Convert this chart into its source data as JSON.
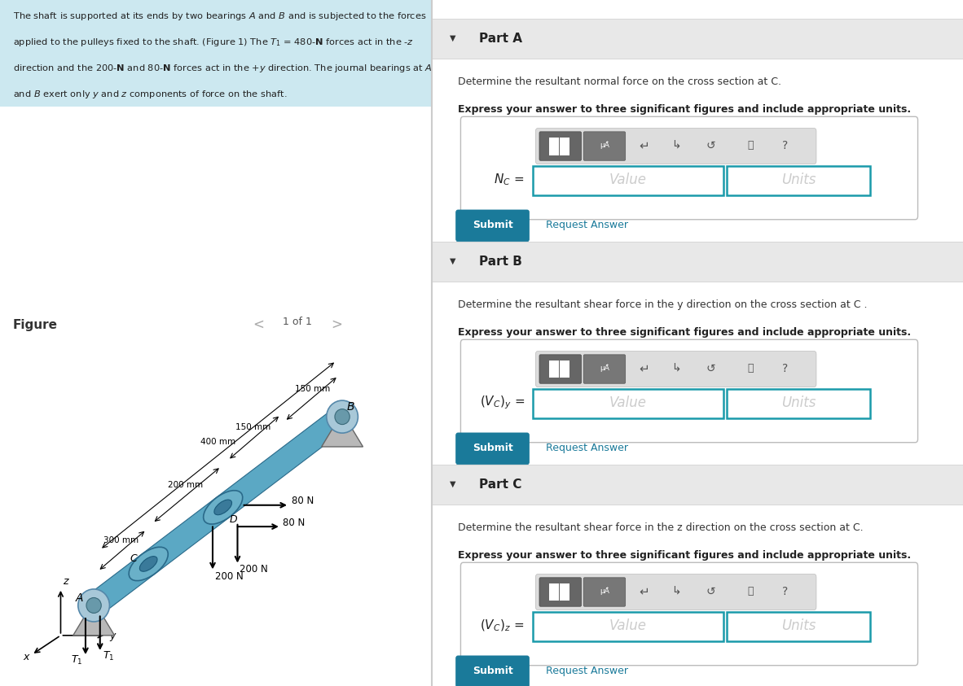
{
  "bg_color_left": "#cce8f0",
  "bg_color_right": "#f5f5f5",
  "teal_color": "#1a7a9a",
  "submit_color": "#1a7a9a",
  "border_color": "#1a9aaa",
  "part_header_bg": "#e8e8e8",
  "part_a_title": "Part A",
  "part_a_desc": "Determine the resultant normal force on the cross section at C.",
  "part_a_bold": "Express your answer to three significant figures and include appropriate units.",
  "part_b_title": "Part B",
  "part_b_desc": "Determine the resultant shear force in the y direction on the cross section at C .",
  "part_b_bold": "Express your answer to three significant figures and include appropriate units.",
  "part_c_title": "Part C",
  "part_c_desc": "Determine the resultant shear force in the z direction on the cross section at C.",
  "part_c_bold": "Express your answer to three significant figures and include appropriate units.",
  "problem_lines": [
    "The shaft is supported at its ends by two bearings $\\mathit{A}$ and $\\mathit{B}$ and is subjected to the forces",
    "applied to the pulleys fixed to the shaft. (Figure 1) The $T_1$ = 480-$\\mathbf{N}$ forces act in the -$z$",
    "direction and the 200-$\\mathbf{N}$ and 80-$\\mathbf{N}$ forces act in the +$y$ direction. The journal bearings at $\\mathit{A}$",
    "and $\\mathit{B}$ exert only $y$ and $z$ components of force on the shaft."
  ]
}
